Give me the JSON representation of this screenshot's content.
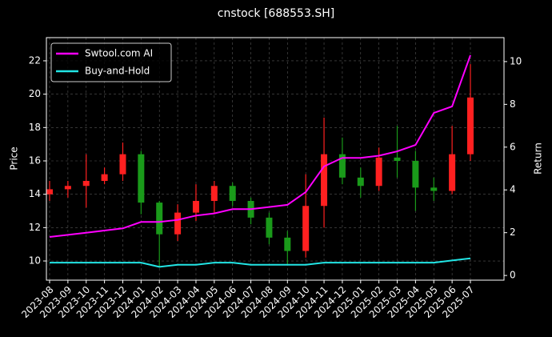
{
  "chart_data": {
    "type": "candlestick",
    "title": "cnstock [688553.SH]",
    "y_label": "Price",
    "y2_label": "Return",
    "x": [
      "2023-08",
      "2023-09",
      "2023-10",
      "2023-11",
      "2023-12",
      "2024-01",
      "2024-02",
      "2024-03",
      "2024-04",
      "2024-05",
      "2024-06",
      "2024-07",
      "2024-08",
      "2024-09",
      "2024-10",
      "2024-11",
      "2024-12",
      "2025-01",
      "2025-02",
      "2025-03",
      "2025-04",
      "2025-05",
      "2025-06",
      "2025-07"
    ],
    "open": [
      14.0,
      14.3,
      14.5,
      14.8,
      15.2,
      16.4,
      13.5,
      11.6,
      12.9,
      13.6,
      14.5,
      13.6,
      12.6,
      11.4,
      10.6,
      13.3,
      16.4,
      15.0,
      14.5,
      16.2,
      16.0,
      14.4,
      14.2,
      16.4
    ],
    "high": [
      14.8,
      14.8,
      16.4,
      15.6,
      17.1,
      16.6,
      13.6,
      13.4,
      14.6,
      14.8,
      14.7,
      13.8,
      12.9,
      11.8,
      15.2,
      18.6,
      17.4,
      15.6,
      16.8,
      18.1,
      16.6,
      15.0,
      18.1,
      21.8
    ],
    "low": [
      13.6,
      13.8,
      13.2,
      14.6,
      14.8,
      12.8,
      9.6,
      11.2,
      12.4,
      12.9,
      13.3,
      12.2,
      11.0,
      9.8,
      10.2,
      12.0,
      14.6,
      13.8,
      14.2,
      15.0,
      13.0,
      13.6,
      14.0,
      16.0
    ],
    "close": [
      14.3,
      14.5,
      14.8,
      15.2,
      16.4,
      13.5,
      11.6,
      12.9,
      13.6,
      14.5,
      13.6,
      12.6,
      11.4,
      10.6,
      13.3,
      16.4,
      15.0,
      14.5,
      16.2,
      16.0,
      14.4,
      14.2,
      16.4,
      19.8
    ],
    "up_color": "#ff2020",
    "down_color": "#1a9a1a",
    "series": [
      {
        "name": "Swtool.com AI",
        "color": "#ff00ff",
        "axis": "y2",
        "values": [
          1.8,
          1.9,
          2.0,
          2.1,
          2.2,
          2.5,
          2.5,
          2.6,
          2.8,
          2.9,
          3.1,
          3.1,
          3.2,
          3.3,
          3.9,
          5.1,
          5.5,
          5.5,
          5.6,
          5.8,
          6.1,
          7.6,
          7.9,
          10.3
        ]
      },
      {
        "name": "Buy-and-Hold",
        "color": "#22e5e5",
        "axis": "y2",
        "values": [
          0.6,
          0.6,
          0.6,
          0.6,
          0.6,
          0.6,
          0.4,
          0.5,
          0.5,
          0.6,
          0.6,
          0.5,
          0.5,
          0.5,
          0.5,
          0.6,
          0.6,
          0.6,
          0.6,
          0.6,
          0.6,
          0.6,
          0.7,
          0.8
        ]
      }
    ],
    "ylim": [
      8.85,
      23.39
    ],
    "yticks": [
      10,
      12,
      14,
      16,
      18,
      20,
      22
    ],
    "y2lim": [
      -0.22,
      11.12
    ],
    "y2ticks": [
      0,
      2,
      4,
      6,
      8,
      10
    ],
    "grid": true,
    "legend": "upper left"
  }
}
